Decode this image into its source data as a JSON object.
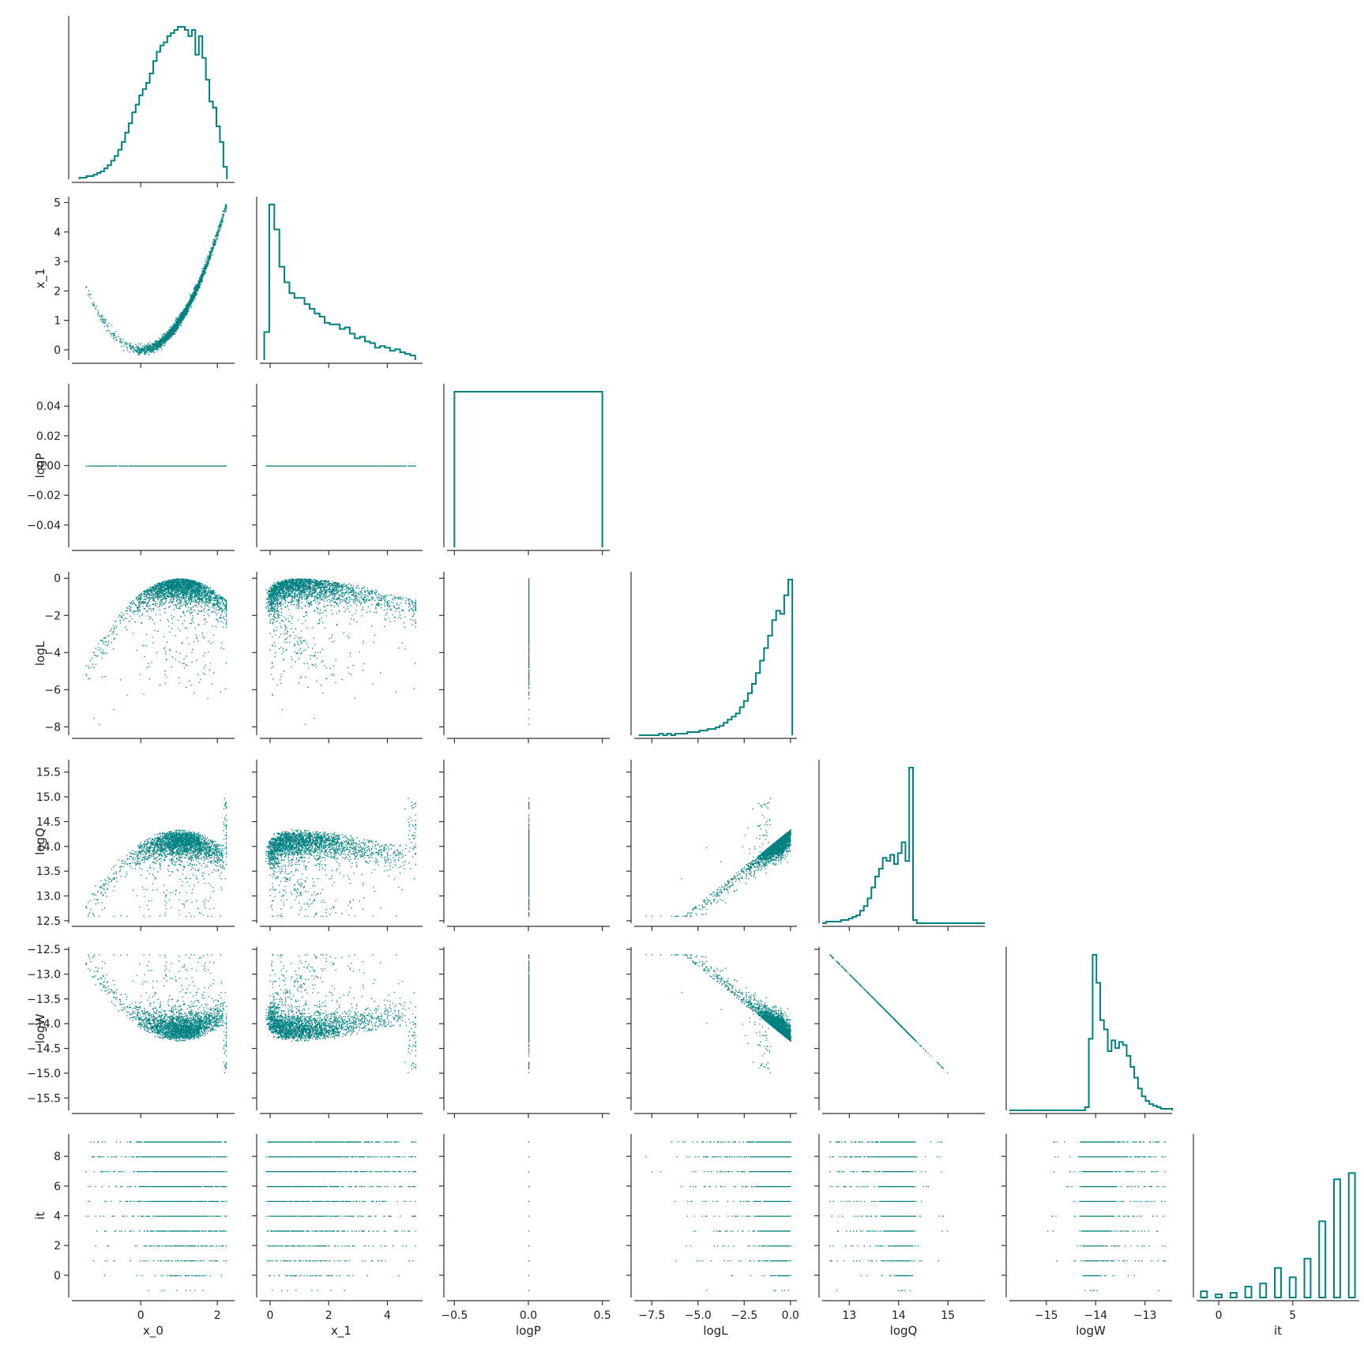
{
  "chart_data": {
    "type": "pairplot",
    "color": "#008080",
    "variables": [
      {
        "label": "x_0",
        "range": [
          -1.8,
          2.45
        ],
        "ticks": [
          {
            "v": 0,
            "t": "0"
          },
          {
            "v": 2,
            "t": "2"
          }
        ]
      },
      {
        "label": "x_1",
        "range": [
          -0.35,
          5.2
        ],
        "ticks": [
          {
            "v": 0,
            "t": "0"
          },
          {
            "v": 1,
            "t": "1"
          },
          {
            "v": 2,
            "t": "2"
          },
          {
            "v": 3,
            "t": "3"
          },
          {
            "v": 4,
            "t": "4"
          },
          {
            "v": 5,
            "t": "5"
          }
        ]
      },
      {
        "label": "logP",
        "range": [
          -0.055,
          0.055
        ],
        "ticks": [
          {
            "v": -0.04,
            "t": "−0.04"
          },
          {
            "v": -0.02,
            "t": "−0.02"
          },
          {
            "v": 0,
            "t": "0.00"
          },
          {
            "v": 0.02,
            "t": "0.02"
          },
          {
            "v": 0.04,
            "t": "0.04"
          }
        ]
      },
      {
        "label": "logL",
        "range": [
          -8.45,
          0.35
        ],
        "ticks": [
          {
            "v": -8,
            "t": "−8"
          },
          {
            "v": -6,
            "t": "−6"
          },
          {
            "v": -4,
            "t": "−4"
          },
          {
            "v": -2,
            "t": "−2"
          },
          {
            "v": 0,
            "t": "0"
          }
        ]
      },
      {
        "label": "logQ",
        "range": [
          12.45,
          15.75
        ],
        "ticks": [
          {
            "v": 12.5,
            "t": "12.5"
          },
          {
            "v": 13,
            "t": "13.0"
          },
          {
            "v": 13.5,
            "t": "13.5"
          },
          {
            "v": 14,
            "t": "14.0"
          },
          {
            "v": 14.5,
            "t": "14.5"
          },
          {
            "v": 15,
            "t": "15.0"
          },
          {
            "v": 15.5,
            "t": "15.5"
          }
        ]
      },
      {
        "label": "logW",
        "range": [
          -15.75,
          -12.45
        ],
        "ticks": [
          {
            "v": -15.5,
            "t": "−15.5"
          },
          {
            "v": -15,
            "t": "−15.0"
          },
          {
            "v": -14.5,
            "t": "−14.5"
          },
          {
            "v": -14,
            "t": "−14.0"
          },
          {
            "v": -13.5,
            "t": "−13.5"
          },
          {
            "v": -13,
            "t": "−13.0"
          },
          {
            "v": -12.5,
            "t": "−12.5"
          }
        ]
      },
      {
        "label": "it",
        "range": [
          -1.5,
          9.5
        ],
        "ticks": [
          {
            "v": 0,
            "t": "0"
          },
          {
            "v": 2,
            "t": "2"
          },
          {
            "v": 4,
            "t": "4"
          },
          {
            "v": 6,
            "t": "6"
          },
          {
            "v": 8,
            "t": "8"
          }
        ]
      }
    ],
    "xticks_bottom": {
      "x_0": [
        {
          "v": 0,
          "t": "0"
        },
        {
          "v": 2,
          "t": "2"
        }
      ],
      "x_1": [
        {
          "v": 0,
          "t": "0"
        },
        {
          "v": 2,
          "t": "2"
        },
        {
          "v": 4,
          "t": "4"
        }
      ],
      "logP": [
        {
          "v": -0.5,
          "t": "−0.5"
        },
        {
          "v": 0,
          "t": "0.0"
        },
        {
          "v": 0.5,
          "t": "0.5"
        }
      ],
      "logL": [
        {
          "v": -7.5,
          "t": "−7.5"
        },
        {
          "v": -5,
          "t": "−5.0"
        },
        {
          "v": -2.5,
          "t": "−2.5"
        },
        {
          "v": 0,
          "t": "0.0"
        }
      ],
      "logQ": [
        {
          "v": 13,
          "t": "13"
        },
        {
          "v": 14,
          "t": "14"
        },
        {
          "v": 15,
          "t": "15"
        }
      ],
      "logW": [
        {
          "v": -15,
          "t": "−15"
        },
        {
          "v": -14,
          "t": "−14"
        },
        {
          "v": -13,
          "t": "−13"
        }
      ],
      "it": [
        {
          "v": 0,
          "t": "0"
        },
        {
          "v": 5,
          "t": "5"
        }
      ]
    },
    "xrange_logP_column": [
      -0.55,
      0.55
    ],
    "histograms": {
      "x_0": {
        "edges": [
          -1.6,
          2.25
        ],
        "counts": [
          1,
          1,
          2,
          2,
          3,
          4,
          5,
          7,
          9,
          12,
          15,
          19,
          24,
          30,
          36,
          43,
          48,
          54,
          58,
          62,
          68,
          76,
          82,
          86,
          88,
          92,
          94,
          96,
          98,
          98,
          96,
          92,
          96,
          80,
          92,
          78,
          64,
          50,
          46,
          34,
          24,
          8
        ]
      },
      "x_1": {
        "edges": [
          -0.2,
          4.95
        ],
        "counts": [
          18,
          100,
          84,
          60,
          50,
          43,
          40,
          40,
          36,
          33,
          30,
          28,
          24,
          23,
          23,
          20,
          21,
          17,
          14,
          15,
          12,
          11,
          8,
          9,
          8,
          6,
          7,
          5,
          4,
          3
        ]
      },
      "logP": {
        "edges": [
          -0.5,
          0.5
        ],
        "counts": [
          100
        ]
      },
      "logL": {
        "edges": [
          -8.2,
          0.1
        ],
        "counts": [
          0,
          0,
          0,
          0,
          0,
          1,
          0,
          1,
          0,
          1,
          1,
          1,
          2,
          2,
          2,
          3,
          3,
          4,
          4,
          5,
          6,
          8,
          10,
          12,
          14,
          18,
          22,
          27,
          33,
          40,
          48,
          56,
          64,
          74,
          80,
          78,
          90,
          100
        ]
      },
      "logQ": {
        "edges": [
          12.45,
          15.75
        ],
        "counts": [
          0,
          1,
          1,
          1,
          1,
          2,
          2,
          3,
          4,
          5,
          8,
          11,
          16,
          23,
          30,
          35,
          42,
          40,
          44,
          38,
          45,
          52,
          40,
          100,
          2,
          0,
          0,
          0,
          0,
          0,
          0,
          0,
          0,
          0,
          0,
          0,
          0,
          0,
          0,
          0,
          0,
          0,
          0
        ]
      },
      "logW": {
        "edges": [
          -15.75,
          -12.45
        ],
        "counts": [
          0,
          0,
          0,
          0,
          0,
          0,
          0,
          0,
          0,
          0,
          0,
          0,
          0,
          0,
          0,
          0,
          0,
          0,
          0,
          0,
          2,
          46,
          100,
          82,
          58,
          52,
          38,
          45,
          40,
          44,
          42,
          35,
          28,
          21,
          14,
          9,
          6,
          4,
          3,
          2,
          1,
          1,
          1
        ]
      },
      "it": {
        "bins": [
          {
            "x": -1,
            "h": 4
          },
          {
            "x": 0,
            "h": 2
          },
          {
            "x": 1,
            "h": 3
          },
          {
            "x": 2,
            "h": 7
          },
          {
            "x": 3,
            "h": 9
          },
          {
            "x": 4,
            "h": 19
          },
          {
            "x": 5,
            "h": 13
          },
          {
            "x": 6,
            "h": 25
          },
          {
            "x": 7,
            "h": 49
          },
          {
            "x": 8,
            "h": 76
          },
          {
            "x": 9,
            "h": 80
          }
        ]
      }
    }
  }
}
